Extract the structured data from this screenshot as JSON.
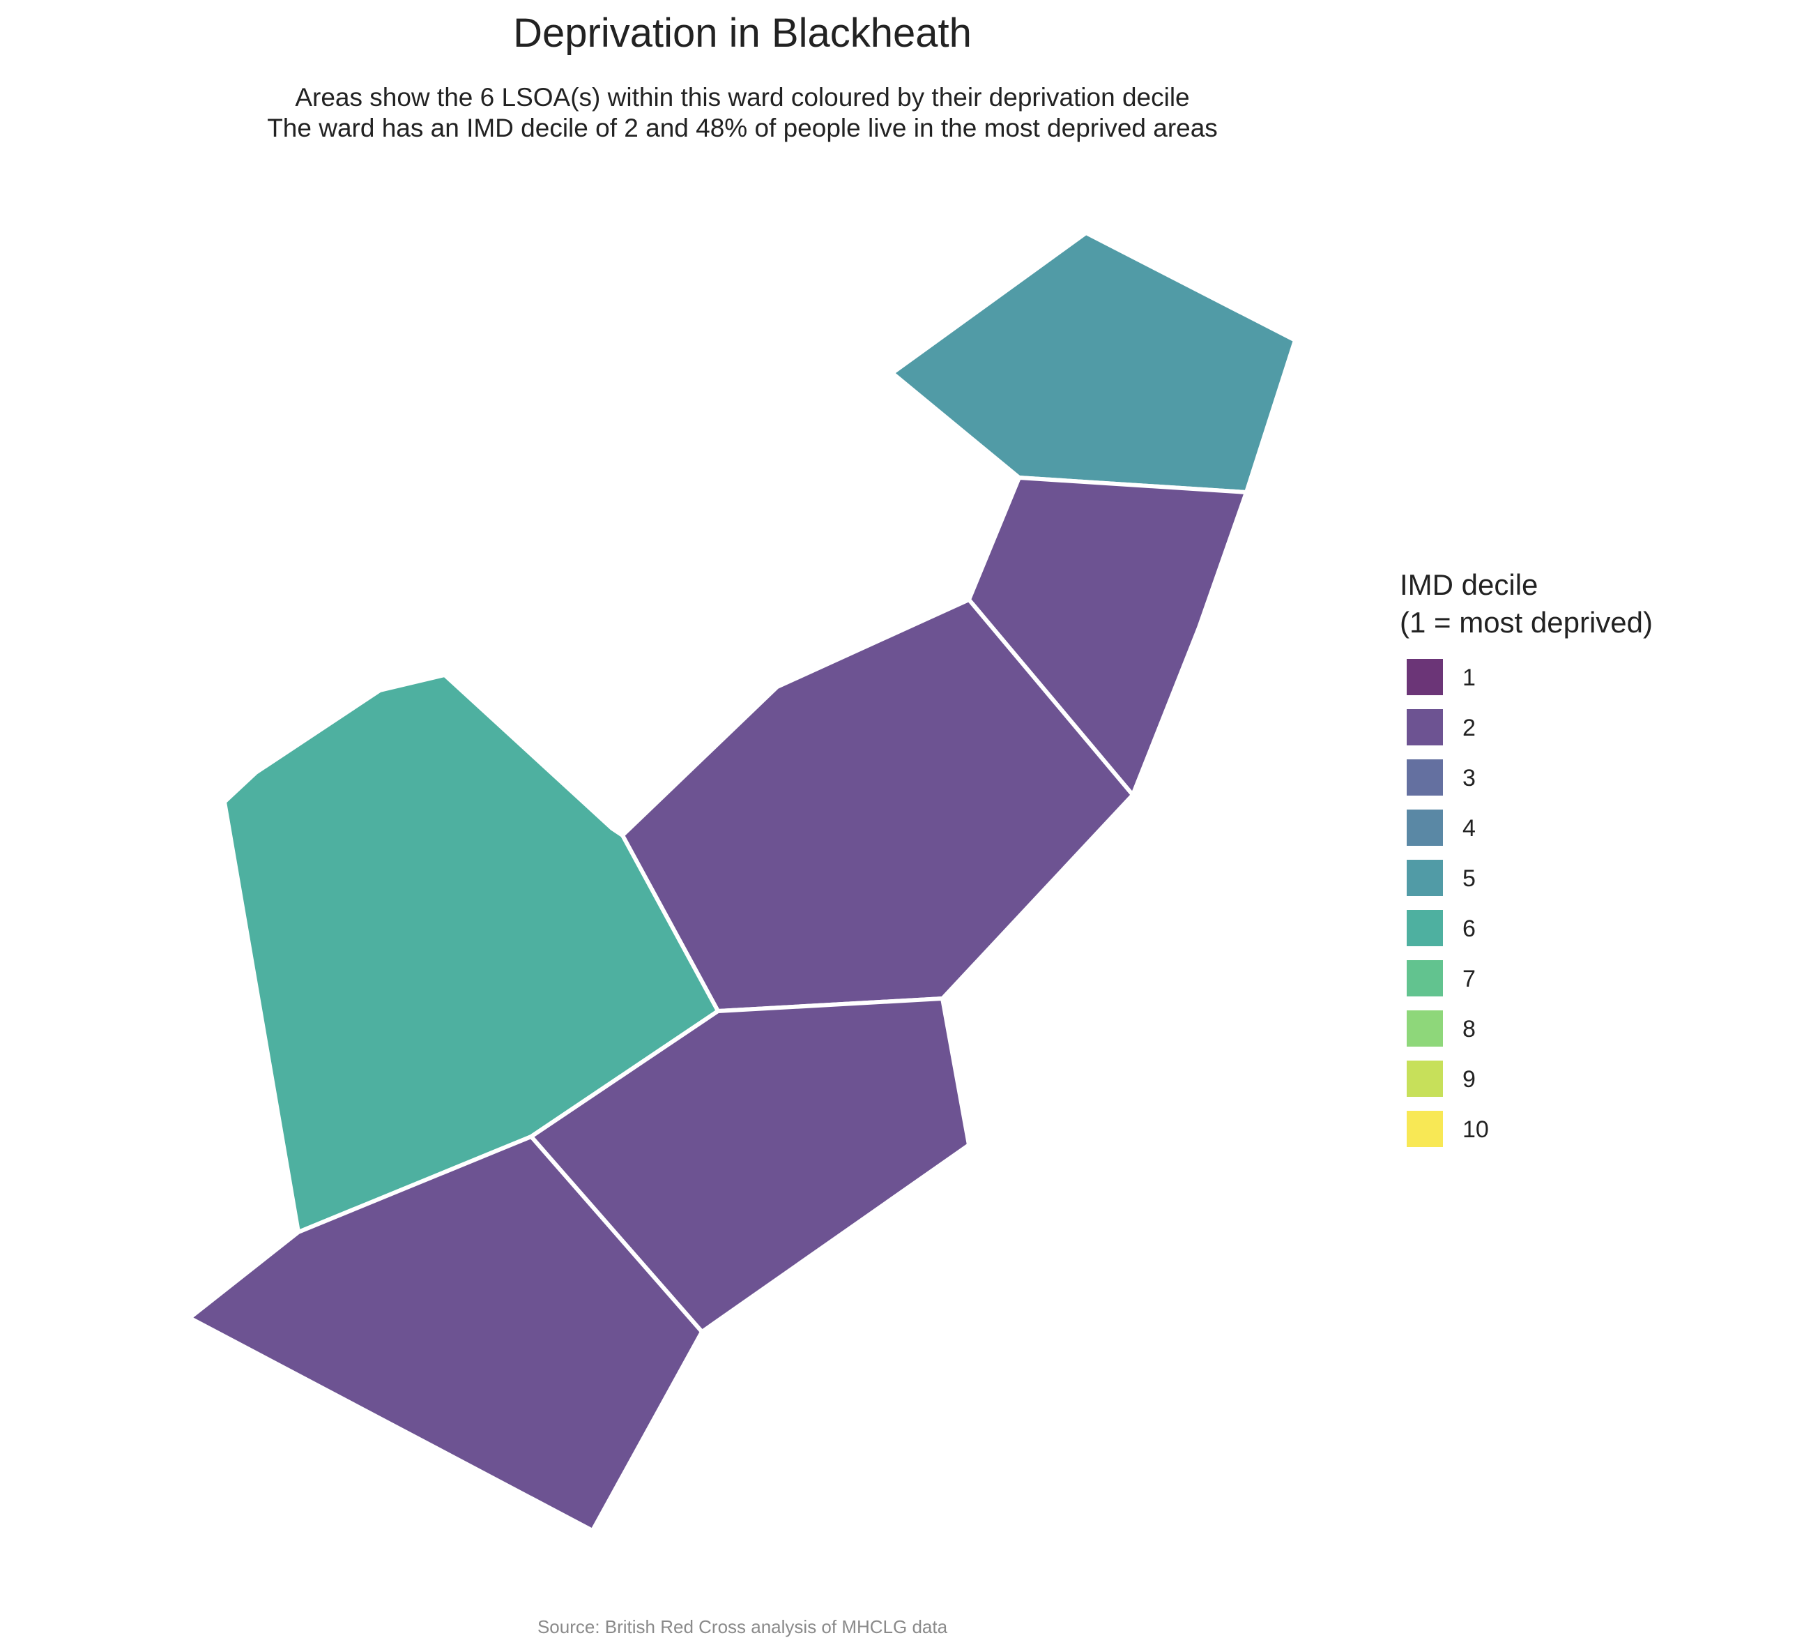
{
  "title": "Deprivation in Blackheath",
  "subtitle_line1": "Areas show the 6 LSOA(s) within this ward coloured by their deprivation decile",
  "subtitle_line2": "The ward has an IMD decile of 2 and 48% of people live in the most deprived areas",
  "legend": {
    "title_line1": "IMD decile",
    "title_line2": "(1 = most deprived)",
    "items": [
      {
        "label": "1",
        "color": "#6B3577"
      },
      {
        "label": "2",
        "color": "#6D5392"
      },
      {
        "label": "3",
        "color": "#6470A0"
      },
      {
        "label": "4",
        "color": "#5A88A5"
      },
      {
        "label": "5",
        "color": "#519BA6"
      },
      {
        "label": "6",
        "color": "#4EB0A0"
      },
      {
        "label": "7",
        "color": "#62C38F"
      },
      {
        "label": "8",
        "color": "#8ED77A"
      },
      {
        "label": "9",
        "color": "#C7E05A"
      },
      {
        "label": "10",
        "color": "#F8E855"
      }
    ]
  },
  "areas": [
    {
      "decile": 5
    },
    {
      "decile": 2
    },
    {
      "decile": 2
    },
    {
      "decile": 6
    },
    {
      "decile": 2
    },
    {
      "decile": 2
    }
  ],
  "source": "Source: British Red Cross analysis of MHCLG data"
}
